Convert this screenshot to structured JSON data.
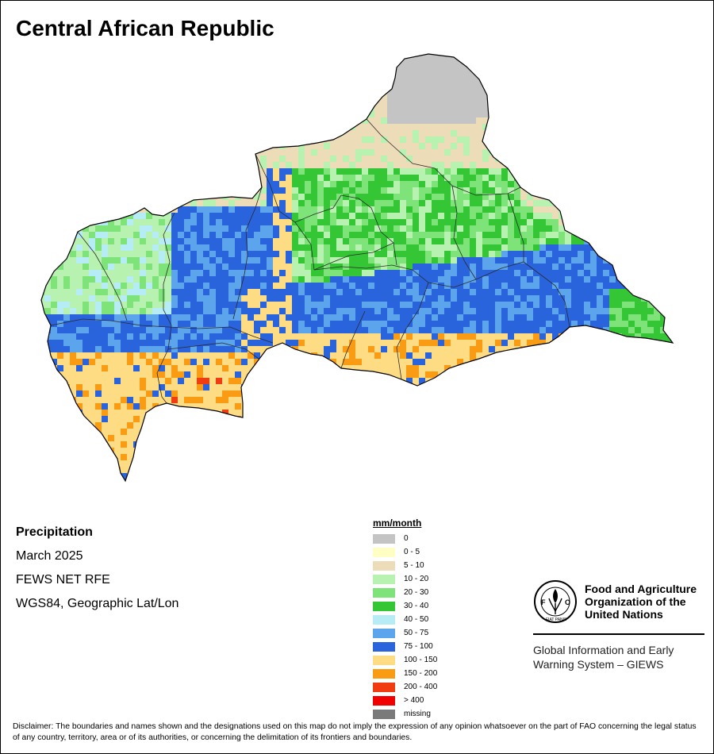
{
  "title": "Central African Republic",
  "info": {
    "variable": "Precipitation",
    "period": "March 2025",
    "source": "FEWS NET RFE",
    "projection": "WGS84, Geographic Lat/Lon"
  },
  "legend": {
    "title": "mm/month",
    "items": [
      {
        "label": "0",
        "color": "#c4c4c4"
      },
      {
        "label": "0 - 5",
        "color": "#ffffc4"
      },
      {
        "label": "5 - 10",
        "color": "#ecdcb8"
      },
      {
        "label": "10 - 20",
        "color": "#b8f2b0"
      },
      {
        "label": "20 - 30",
        "color": "#7ee47a"
      },
      {
        "label": "30 - 40",
        "color": "#34c634"
      },
      {
        "label": "40 - 50",
        "color": "#b6ecf6"
      },
      {
        "label": "50 - 75",
        "color": "#5ca4ec"
      },
      {
        "label": "75 - 100",
        "color": "#2a64dc"
      },
      {
        "label": "100 - 150",
        "color": "#fddc84"
      },
      {
        "label": "150 - 200",
        "color": "#f99c14"
      },
      {
        "label": "200 - 400",
        "color": "#f03c10"
      },
      {
        "label": "> 400",
        "color": "#f00000"
      },
      {
        "label": "missing",
        "color": "#7a7a7a"
      }
    ]
  },
  "organization": {
    "name_line1": "Food and Agriculture",
    "name_line2": "Organization of the",
    "name_line3": "United Nations",
    "logo_text": "FAO",
    "logo_motto": "FIAT PANIS",
    "system_line1": "Global Information and Early",
    "system_line2": "Warning System – GIEWS"
  },
  "disclaimer": "Disclaimer: The boundaries and names shown and the designations used on this map do not imply the expression of any opinion whatsoever on the part of FAO concerning the legal status of any country, territory, area or of its authorities, or concerning the delimitation of its frontiers and boundaries."
}
